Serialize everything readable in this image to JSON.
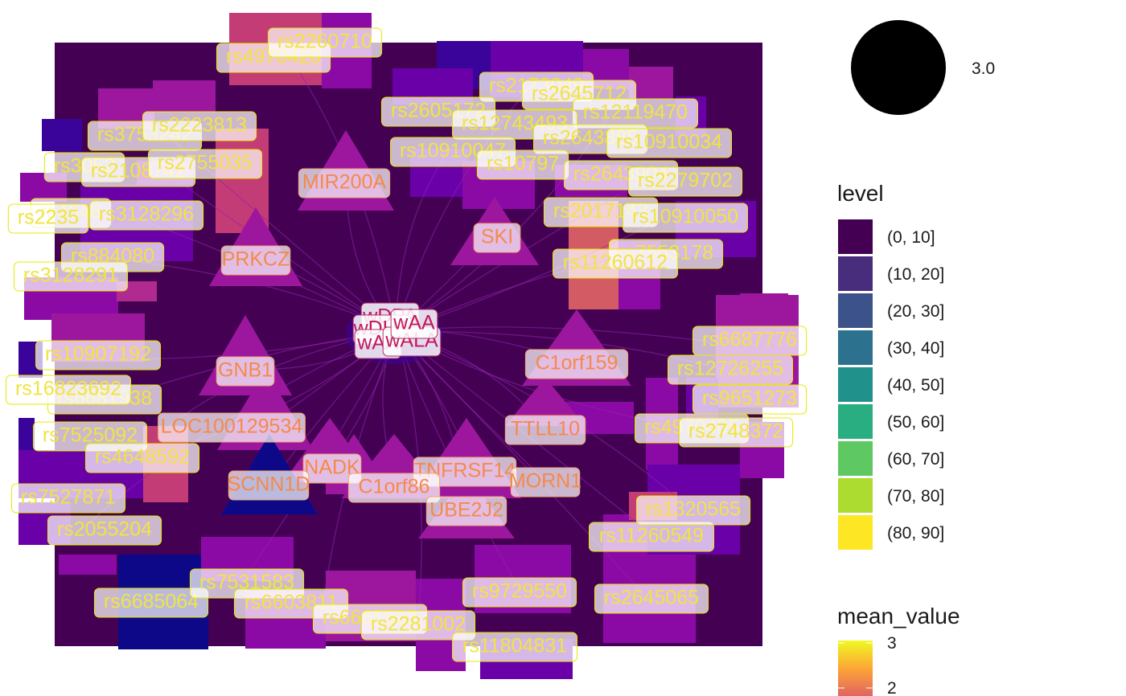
{
  "chart_data": {
    "type": "network",
    "title": "",
    "center_nodes": [
      "wDPA",
      "wAA",
      "wDHA",
      "wALA"
    ],
    "gene_nodes": [
      "MIR200A",
      "SKI",
      "PRKCZ",
      "GNB1",
      "C1orf159",
      "TTLL10",
      "LOC100129534",
      "NADK",
      "TNFRSF14",
      "MORN1",
      "C1orf86",
      "UBE2J2",
      "SCNN1D"
    ],
    "snp_nodes": [
      "rs4970420",
      "rs2260710",
      "rs2173049",
      "rs2645712",
      "rs12119470",
      "rs2605172",
      "rs12743493",
      "rs2643885",
      "rs10910034",
      "rs10910047",
      "rs10797",
      "rs2643904",
      "rs2279702",
      "rs2017143",
      "rs10910050",
      "rs7553178",
      "rs11260612",
      "rs3753242",
      "rs2223813",
      "rs3052",
      "rs2108742",
      "rs2755035",
      "rs4648",
      "rs3128296",
      "rs2235",
      "rs884080",
      "rs3128291",
      "rs10907192",
      "rs6681938",
      "rs16823692",
      "rs7525092",
      "rs4648592",
      "rs7527871",
      "rs2055204",
      "rs6685064",
      "rs7531583",
      "rs6603811",
      "rs6665593",
      "rs2281002",
      "rs9729550",
      "rs11804831",
      "rs2645065",
      "rs11260549",
      "rs1320565",
      "rs4970405",
      "rs2748372",
      "rs9651273",
      "rs12726255",
      "rs6687776"
    ],
    "size_legend": {
      "value": "3.0"
    },
    "level_legend": {
      "title": "level",
      "categories": [
        "(0, 10]",
        "(10, 20]",
        "(20, 30]",
        "(30, 40]",
        "(40, 50]",
        "(50, 60]",
        "(60, 70]",
        "(70, 80]",
        "(80, 90]"
      ],
      "colors": [
        "#440154",
        "#472d7b",
        "#3b528b",
        "#2c728e",
        "#21918c",
        "#28ae80",
        "#5ec962",
        "#addc30",
        "#fde725"
      ]
    },
    "mean_value_legend": {
      "title": "mean_value",
      "ticks": [
        3,
        2
      ],
      "colors": [
        "#f0f921",
        "#fca636",
        "#e16462"
      ]
    },
    "colors": {
      "background_tile": "#440154",
      "snp_label_text": "#f0e442",
      "snp_label_border": "#e8e800",
      "gene_label_text": "#f48a4a",
      "gene_label_border": "#f4a36c",
      "center_label_text": "#c2185b",
      "center_label_border": "#b0306b",
      "triangle": "#9c179e",
      "edge": "#8e24aa"
    }
  }
}
